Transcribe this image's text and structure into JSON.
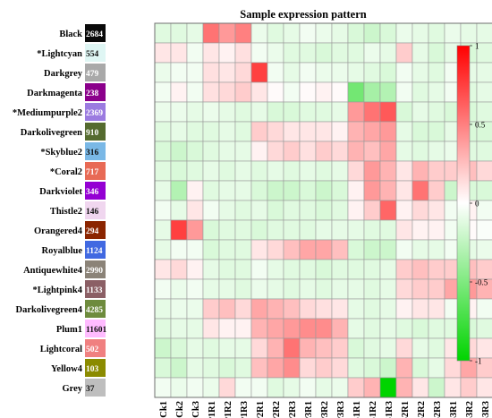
{
  "chart_data": {
    "type": "heatmap",
    "title": "Sample expression pattern",
    "xlabel": "",
    "ylabel": "",
    "legend": "right",
    "grid": true,
    "rows": [
      {
        "name": "Black",
        "count": "2684",
        "color": "#0a0a0a"
      },
      {
        "name": "*Lightcyan",
        "count": "554",
        "color": "#dff6f4"
      },
      {
        "name": "Darkgrey",
        "count": "479",
        "color": "#a9a9a9"
      },
      {
        "name": "Darkmagenta",
        "count": "238",
        "color": "#8b008b"
      },
      {
        "name": "*Mediumpurple2",
        "count": "2369",
        "color": "#9b7be0"
      },
      {
        "name": "Darkolivegreen",
        "count": "910",
        "color": "#556b2f"
      },
      {
        "name": "*Skyblue2",
        "count": "316",
        "color": "#7ab8e6"
      },
      {
        "name": "*Coral2",
        "count": "717",
        "color": "#e86a55"
      },
      {
        "name": "Darkviolet",
        "count": "346",
        "color": "#9400d3"
      },
      {
        "name": "Thistle2",
        "count": "146",
        "color": "#f0d6ef"
      },
      {
        "name": "Orangered4",
        "count": "294",
        "color": "#8b2500"
      },
      {
        "name": "Royalblue",
        "count": "1124",
        "color": "#4169e1"
      },
      {
        "name": "Antiquewhite4",
        "count": "2990",
        "color": "#8b8378"
      },
      {
        "name": "*Lightpink4",
        "count": "1133",
        "color": "#8b5f65"
      },
      {
        "name": "Darkolivegreen4",
        "count": "4285",
        "color": "#6e8b3d"
      },
      {
        "name": "Plum1",
        "count": "11601",
        "color": "#ffbbff"
      },
      {
        "name": "Lightcoral",
        "count": "502",
        "color": "#f08080"
      },
      {
        "name": "Yellow4",
        "count": "103",
        "color": "#8b8b00"
      },
      {
        "name": "Grey",
        "count": "37",
        "color": "#bebebe"
      }
    ],
    "columns": [
      "Ck1",
      "Ck2",
      "Ck3",
      "P1R1",
      "P1R2",
      "P1R3",
      "P2R1",
      "P2R2",
      "P2R3",
      "P3R1",
      "P3R2",
      "P3R3",
      "S1R1",
      "S1R2",
      "S1R3",
      "S2R1",
      "S2R2",
      "S2R3",
      "S3R1",
      "S3R2",
      "S3R3"
    ],
    "values": [
      [
        -0.12,
        -0.12,
        -0.1,
        0.55,
        0.4,
        0.5,
        -0.08,
        -0.12,
        -0.1,
        -0.05,
        -0.08,
        -0.1,
        -0.15,
        -0.2,
        -0.15,
        -0.08,
        -0.1,
        -0.12,
        -0.08,
        -0.1,
        -0.1
      ],
      [
        0.1,
        0.1,
        -0.05,
        0.1,
        0.05,
        0.12,
        -0.05,
        -0.08,
        -0.12,
        -0.12,
        -0.15,
        -0.12,
        -0.12,
        -0.08,
        -0.1,
        0.2,
        -0.1,
        -0.15,
        -0.1,
        -0.15,
        -0.12
      ],
      [
        -0.08,
        -0.05,
        -0.05,
        0.12,
        0.1,
        0.15,
        0.75,
        -0.05,
        -0.1,
        -0.05,
        -0.08,
        -0.08,
        -0.1,
        -0.12,
        -0.15,
        -0.05,
        -0.1,
        -0.12,
        -0.05,
        -0.1,
        -0.1
      ],
      [
        -0.05,
        0.05,
        -0.05,
        0.12,
        0.15,
        0.2,
        0.1,
        0.02,
        -0.05,
        0.02,
        0.05,
        0.02,
        -0.55,
        -0.35,
        -0.3,
        -0.05,
        -0.12,
        -0.1,
        -0.05,
        -0.12,
        -0.1
      ],
      [
        -0.08,
        -0.08,
        -0.1,
        -0.08,
        -0.1,
        -0.12,
        -0.1,
        -0.15,
        -0.15,
        -0.12,
        -0.12,
        -0.1,
        0.4,
        0.55,
        0.65,
        -0.15,
        -0.1,
        -0.12,
        -0.15,
        -0.15,
        -0.12
      ],
      [
        -0.12,
        -0.1,
        -0.12,
        -0.12,
        -0.1,
        -0.12,
        0.2,
        0.15,
        0.1,
        0.1,
        0.1,
        0.05,
        0.3,
        0.35,
        0.4,
        -0.1,
        -0.15,
        -0.15,
        -0.1,
        -0.15,
        -0.15
      ],
      [
        -0.15,
        -0.2,
        -0.15,
        -0.12,
        -0.1,
        -0.1,
        0.05,
        0.15,
        0.2,
        0.12,
        0.2,
        0.15,
        0.3,
        0.25,
        0.35,
        -0.1,
        -0.12,
        -0.1,
        -0.08,
        -0.12,
        -0.12
      ],
      [
        -0.12,
        -0.15,
        -0.12,
        -0.1,
        -0.12,
        -0.1,
        -0.12,
        -0.1,
        -0.12,
        -0.1,
        -0.12,
        -0.1,
        0.15,
        0.4,
        0.3,
        0.1,
        0.3,
        0.2,
        0.2,
        0.25,
        0.15
      ],
      [
        -0.1,
        -0.3,
        0.05,
        -0.12,
        -0.1,
        -0.1,
        -0.15,
        -0.2,
        -0.2,
        -0.15,
        -0.2,
        -0.15,
        0.05,
        0.4,
        0.3,
        0.1,
        0.55,
        0.2,
        -0.2,
        -0.15,
        -0.15
      ],
      [
        -0.05,
        -0.1,
        0.1,
        -0.05,
        -0.1,
        -0.12,
        -0.1,
        -0.15,
        -0.12,
        -0.12,
        -0.15,
        -0.12,
        0.05,
        0.2,
        0.6,
        0.05,
        0.15,
        0.1,
        -0.05,
        0.05,
        -0.05
      ],
      [
        -0.1,
        0.75,
        0.4,
        -0.15,
        -0.12,
        -0.12,
        -0.15,
        -0.12,
        -0.12,
        -0.12,
        -0.1,
        -0.1,
        -0.1,
        -0.12,
        -0.12,
        0.1,
        0.05,
        0.05,
        -0.05,
        0.02,
        -0.02
      ],
      [
        -0.1,
        -0.05,
        -0.05,
        -0.15,
        -0.12,
        -0.12,
        0.1,
        0.15,
        0.25,
        0.35,
        0.35,
        0.25,
        -0.15,
        -0.2,
        -0.2,
        -0.05,
        -0.1,
        -0.1,
        -0.05,
        -0.1,
        -0.08
      ],
      [
        0.1,
        0.15,
        0.05,
        -0.1,
        -0.12,
        -0.12,
        -0.05,
        -0.1,
        -0.12,
        -0.12,
        -0.15,
        -0.12,
        -0.12,
        -0.12,
        -0.1,
        0.2,
        0.25,
        0.2,
        0.2,
        0.25,
        0.2
      ],
      [
        -0.05,
        -0.08,
        -0.05,
        -0.1,
        -0.1,
        -0.12,
        -0.08,
        -0.1,
        -0.12,
        -0.1,
        -0.12,
        -0.1,
        -0.1,
        -0.12,
        -0.1,
        0.15,
        0.2,
        0.2,
        0.35,
        0.4,
        0.3
      ],
      [
        -0.1,
        -0.08,
        -0.08,
        0.2,
        0.25,
        0.15,
        0.35,
        0.3,
        0.25,
        0.15,
        0.12,
        0.1,
        -0.1,
        -0.12,
        -0.1,
        0.05,
        0.1,
        0.1,
        -0.05,
        0.05,
        -0.05
      ],
      [
        -0.12,
        -0.1,
        -0.1,
        0.1,
        0.05,
        0.05,
        0.3,
        0.35,
        0.4,
        0.45,
        0.45,
        0.3,
        -0.1,
        -0.12,
        -0.1,
        -0.12,
        -0.15,
        -0.12,
        -0.12,
        -0.15,
        -0.12
      ],
      [
        -0.2,
        -0.15,
        -0.1,
        -0.12,
        -0.1,
        -0.1,
        0.15,
        0.3,
        0.55,
        0.3,
        0.25,
        0.2,
        -0.15,
        -0.12,
        -0.1,
        0.15,
        -0.1,
        -0.12,
        0.1,
        0.15,
        0.1
      ],
      [
        -0.15,
        -0.2,
        -0.1,
        -0.12,
        -0.15,
        -0.12,
        0.25,
        0.35,
        0.45,
        0.15,
        0.2,
        0.15,
        -0.12,
        -0.15,
        -0.2,
        0.3,
        -0.15,
        -0.1,
        0.15,
        0.35,
        0.2
      ],
      [
        -0.05,
        -0.08,
        -0.05,
        -0.08,
        0.15,
        -0.05,
        -0.05,
        -0.12,
        -0.1,
        -0.05,
        -0.1,
        -0.08,
        0.2,
        0.3,
        -1.0,
        0.3,
        0.1,
        -0.2,
        0.1,
        0.2,
        0.1
      ]
    ],
    "zlim": [
      -1,
      1
    ],
    "colorbar_ticks": [
      {
        "value": 1,
        "label": "1"
      },
      {
        "value": 0.5,
        "label": "0.5"
      },
      {
        "value": 0,
        "label": "0"
      },
      {
        "value": -0.5,
        "label": "-0.5"
      },
      {
        "value": -1,
        "label": "-1"
      }
    ],
    "color_scale": {
      "low": "#00d400",
      "mid": "#ffffff",
      "high": "#ff0000"
    }
  }
}
